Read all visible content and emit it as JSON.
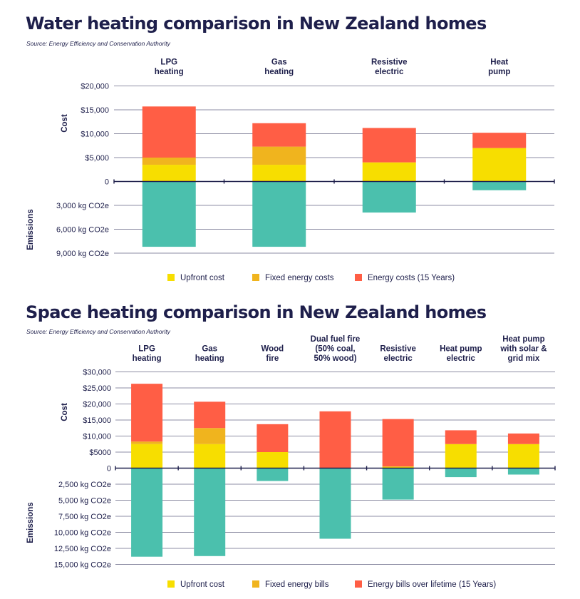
{
  "colors": {
    "upfront": "#f7de00",
    "fixed": "#f0b41e",
    "energy": "#ff5e45",
    "emissions": "#4bc0ad",
    "ink": "#1e1f4b",
    "grid": "#1e1f4b"
  },
  "chart_data": [
    {
      "type": "bar",
      "stacked": true,
      "title": "Water heating comparison in New Zealand homes",
      "source": "Source: Energy Efficiency and Conservation Authority",
      "categories": [
        [
          "LPG",
          "heating"
        ],
        [
          "Gas",
          "heating"
        ],
        [
          "Resistive",
          "electric"
        ],
        [
          "Heat",
          "pump"
        ]
      ],
      "cost_axis_label": "Cost",
      "emissions_axis_label": "Emissions",
      "cost_ticks": [
        {
          "value": 20000,
          "label": "$20,000"
        },
        {
          "value": 15000,
          "label": "$15,000"
        },
        {
          "value": 10000,
          "label": "$10,000"
        },
        {
          "value": 5000,
          "label": "$5,000"
        },
        {
          "value": 0,
          "label": "0"
        }
      ],
      "emission_ticks": [
        {
          "value": 3000,
          "label": "3,000 kg CO2e"
        },
        {
          "value": 6000,
          "label": "6,000 kg CO2e"
        },
        {
          "value": 9000,
          "label": "9,000 kg CO2e"
        }
      ],
      "cost_max": 20000,
      "emissions_max": 9000,
      "series": [
        {
          "name": "Upfront cost",
          "color_key": "upfront",
          "values": [
            3500,
            3500,
            4000,
            7000
          ]
        },
        {
          "name": "Fixed energy costs",
          "color_key": "fixed",
          "values": [
            1500,
            3800,
            0,
            0
          ]
        },
        {
          "name": "Energy costs (15 Years)",
          "color_key": "energy",
          "values": [
            10700,
            4900,
            7200,
            3200
          ]
        }
      ],
      "emissions": {
        "values": [
          8200,
          8200,
          3900,
          1100
        ]
      }
    },
    {
      "type": "bar",
      "stacked": true,
      "title": "Space heating comparison in New Zealand homes",
      "source": "Source: Energy Efficiency and Conservation Authority",
      "categories": [
        [
          "LPG",
          "heating"
        ],
        [
          "Gas",
          "heating"
        ],
        [
          "Wood",
          "fire"
        ],
        [
          "Dual fuel fire",
          "(50% coal,",
          "50% wood)"
        ],
        [
          "Resistive",
          "electric"
        ],
        [
          "Heat pump",
          "electric"
        ],
        [
          "Heat pump",
          "with solar &",
          "grid mix"
        ]
      ],
      "cost_axis_label": "Cost",
      "emissions_axis_label": "Emissions",
      "cost_ticks": [
        {
          "value": 30000,
          "label": "$30,000"
        },
        {
          "value": 25000,
          "label": "$25,000"
        },
        {
          "value": 20000,
          "label": "$20,000"
        },
        {
          "value": 15000,
          "label": "$15,000"
        },
        {
          "value": 10000,
          "label": "$10,000"
        },
        {
          "value": 5000,
          "label": "$5000"
        },
        {
          "value": 0,
          "label": "0"
        }
      ],
      "emission_ticks": [
        {
          "value": 2500,
          "label": "2,500 kg CO2e"
        },
        {
          "value": 5000,
          "label": "5,000 kg CO2e"
        },
        {
          "value": 7500,
          "label": "7,500 kg CO2e"
        },
        {
          "value": 10000,
          "label": "10,000 kg CO2e"
        },
        {
          "value": 12500,
          "label": "12,500 kg CO2e"
        },
        {
          "value": 15000,
          "label": "15,000 kg CO2e"
        }
      ],
      "cost_max": 30000,
      "emissions_max": 15000,
      "series": [
        {
          "name": "Upfront cost",
          "color_key": "upfront",
          "values": [
            7500,
            7500,
            5000,
            0,
            500,
            7500,
            7500
          ]
        },
        {
          "name": "Fixed energy bills",
          "color_key": "fixed",
          "values": [
            800,
            5000,
            0,
            0,
            0,
            0,
            0
          ]
        },
        {
          "name": "Energy bills over lifetime (15 Years)",
          "color_key": "energy",
          "values": [
            18000,
            8200,
            8700,
            17700,
            14800,
            4300,
            3300
          ]
        }
      ],
      "emissions": {
        "values": [
          13800,
          13700,
          2000,
          11000,
          4900,
          1400,
          1000
        ]
      }
    }
  ]
}
